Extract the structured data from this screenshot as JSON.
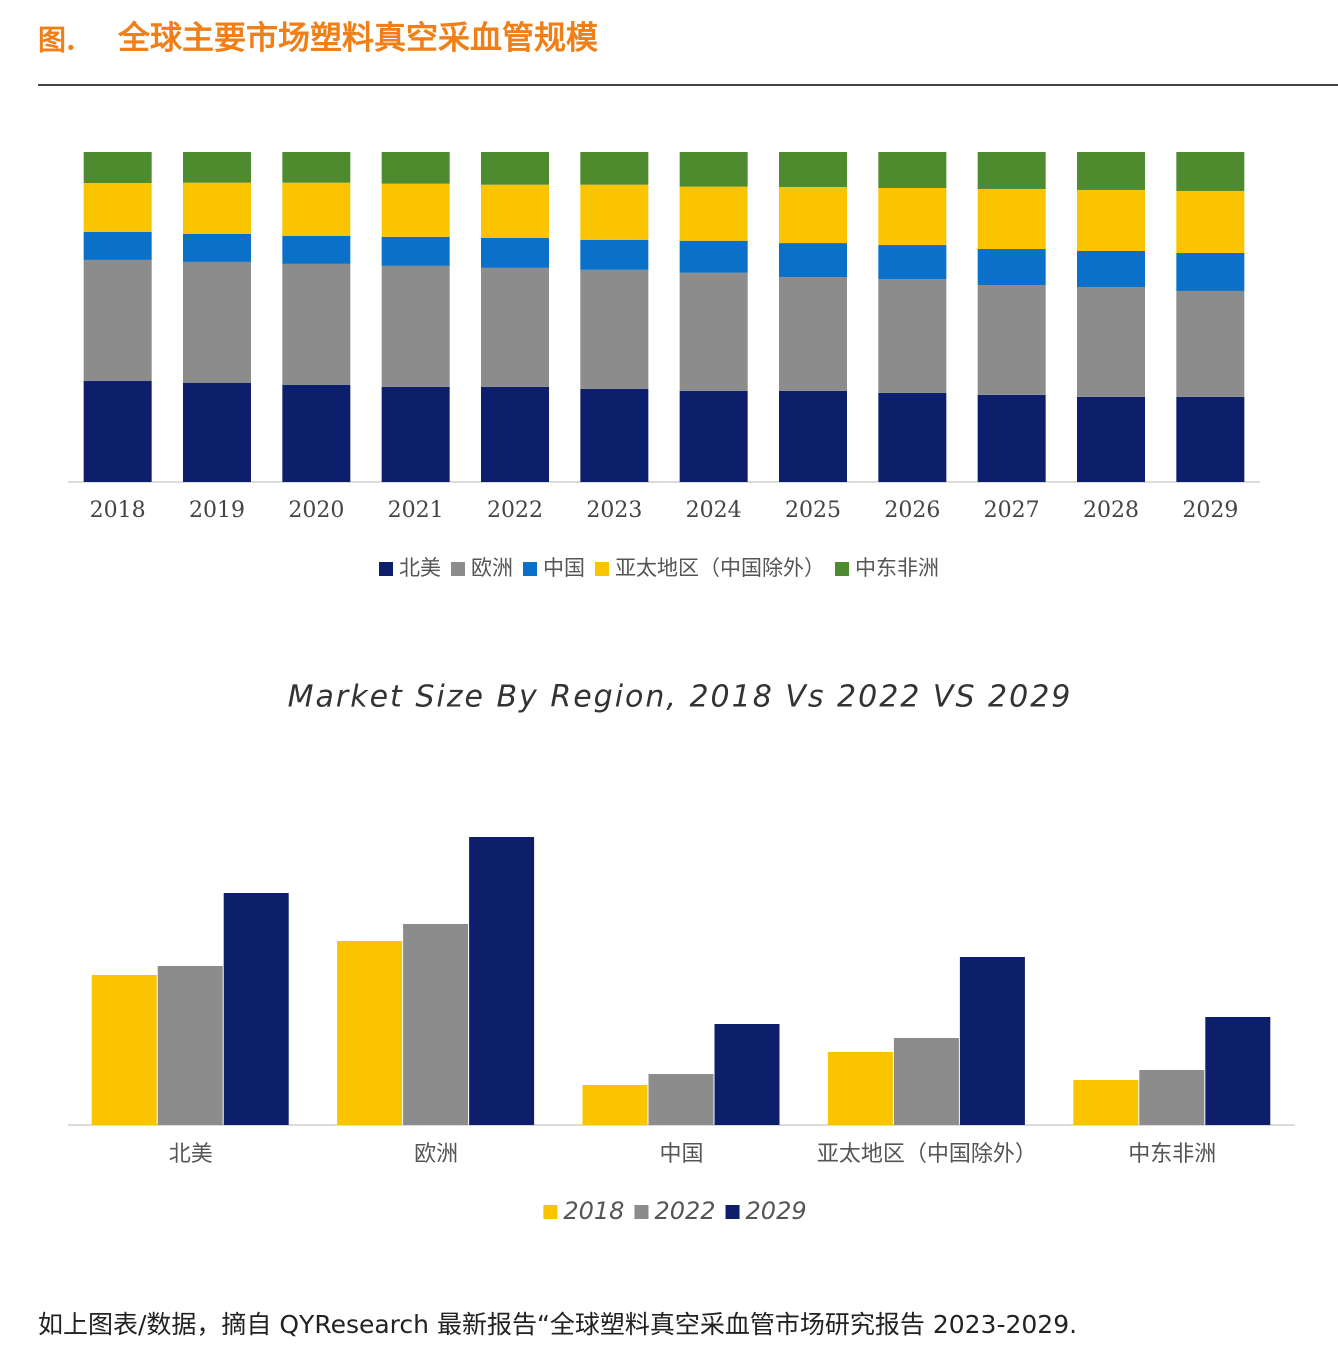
{
  "header": {
    "label": "图.",
    "title": "全球主要市场塑料真空采血管规模"
  },
  "chart_data": [
    {
      "type": "stacked-bar",
      "categories": [
        "2018",
        "2019",
        "2020",
        "2021",
        "2022",
        "2023",
        "2024",
        "2025",
        "2026",
        "2027",
        "2028",
        "2029"
      ],
      "ylim": [
        0,
        100
      ],
      "series": [
        {
          "name": "北美",
          "color": "#0d1f6b",
          "values": [
            30.6,
            30.0,
            29.4,
            28.8,
            28.8,
            28.2,
            27.6,
            27.6,
            27.0,
            26.4,
            25.8,
            25.8
          ]
        },
        {
          "name": "欧洲",
          "color": "#8c8c8c",
          "values": [
            36.7,
            36.7,
            36.7,
            36.7,
            36.1,
            36.1,
            35.8,
            34.5,
            34.5,
            33.3,
            33.3,
            32.1
          ]
        },
        {
          "name": "中国",
          "color": "#0a70c8",
          "values": [
            8.5,
            8.5,
            8.5,
            8.8,
            9.1,
            9.1,
            9.7,
            10.3,
            10.3,
            10.9,
            10.9,
            11.5
          ]
        },
        {
          "name": "亚太地区（中国除外）",
          "color": "#fbc400",
          "values": [
            14.8,
            15.5,
            16.1,
            16.1,
            16.1,
            16.7,
            16.4,
            17.0,
            17.3,
            18.2,
            18.5,
            18.8
          ]
        },
        {
          "name": "中东非洲",
          "color": "#4e8a2e",
          "values": [
            9.4,
            9.3,
            9.3,
            9.6,
            9.9,
            9.9,
            10.5,
            10.6,
            10.9,
            11.2,
            11.5,
            11.8
          ]
        }
      ]
    },
    {
      "type": "grouped-bar",
      "title": "Market Size By Region, 2018 Vs 2022 VS 2029",
      "categories": [
        "北美",
        "欧洲",
        "中国",
        "亚太地区（中国除外）",
        "中东非洲"
      ],
      "ylim": [
        0,
        300
      ],
      "series": [
        {
          "name": "2018",
          "color": "#fbc400",
          "values": [
            150,
            184,
            40,
            73,
            45
          ]
        },
        {
          "name": "2022",
          "color": "#8c8c8c",
          "values": [
            159,
            201,
            51,
            87,
            55
          ]
        },
        {
          "name": "2029",
          "color": "#0d1f6b",
          "values": [
            232,
            288,
            101,
            168,
            108
          ]
        }
      ]
    }
  ],
  "footer": "如上图表/数据，摘自 QYResearch 最新报告“全球塑料真空采血管市场研究报告 2023-2029."
}
